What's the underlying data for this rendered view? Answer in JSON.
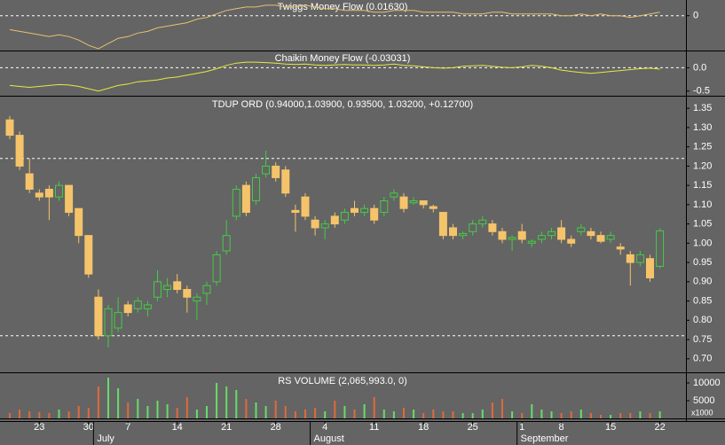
{
  "chart_data": [
    {
      "type": "line",
      "title": "Twiggs Money Flow (0.01630)",
      "color": "#e8c070",
      "ylim": [
        -0.2,
        0.09
      ],
      "yticks": [
        0
      ],
      "reference_lines": [
        0
      ],
      "values": [
        -0.08,
        -0.09,
        -0.1,
        -0.11,
        -0.12,
        -0.11,
        -0.12,
        -0.14,
        -0.17,
        -0.19,
        -0.16,
        -0.13,
        -0.12,
        -0.1,
        -0.09,
        -0.07,
        -0.06,
        -0.05,
        -0.04,
        -0.02,
        -0.01,
        0.01,
        0.03,
        0.04,
        0.05,
        0.05,
        0.06,
        0.06,
        0.05,
        0.05,
        0.06,
        0.05,
        0.04,
        0.04,
        0.03,
        0.03,
        0.03,
        0.02,
        0.02,
        0.03,
        0.03,
        0.03,
        0.02,
        0.02,
        0.02,
        0.02,
        0.01,
        0.01,
        0.01,
        0.02,
        0.02,
        0.01,
        0.01,
        0.01,
        0.01,
        0.01,
        0.0,
        0.0,
        0.01,
        0.0,
        0.01,
        0.0,
        0.0,
        -0.01,
        0.0,
        0.01,
        0.02
      ]
    },
    {
      "type": "line",
      "title": "Chaikin Money Flow (-0.03031)",
      "color": "#e8e840",
      "ylim": [
        -0.6,
        0.35
      ],
      "yticks": [
        {
          "value": 0,
          "label": "0.0"
        },
        {
          "value": -0.5,
          "label": "-0.5"
        }
      ],
      "reference_lines": [
        0
      ],
      "values": [
        -0.38,
        -0.4,
        -0.42,
        -0.4,
        -0.38,
        -0.36,
        -0.37,
        -0.4,
        -0.45,
        -0.5,
        -0.44,
        -0.38,
        -0.35,
        -0.3,
        -0.28,
        -0.26,
        -0.22,
        -0.2,
        -0.16,
        -0.12,
        -0.08,
        -0.02,
        0.05,
        0.1,
        0.12,
        0.12,
        0.11,
        0.1,
        0.08,
        0.07,
        0.08,
        0.06,
        0.05,
        0.06,
        0.07,
        0.06,
        0.06,
        0.05,
        0.06,
        0.08,
        0.05,
        0.04,
        0.02,
        0.0,
        -0.01,
        0.0,
        0.03,
        0.04,
        0.05,
        0.03,
        0.01,
        0.0,
        0.02,
        0.05,
        0.03,
        0.0,
        -0.05,
        -0.08,
        -0.1,
        -0.12,
        -0.1,
        -0.08,
        -0.06,
        -0.04,
        -0.02,
        -0.01,
        -0.03
      ]
    },
    {
      "type": "candlestick",
      "title": "TDUP ORD (0.94000,1.03900, 0.93500, 1.03200, +0.12700)",
      "up_color": "#44cc44",
      "down_color": "#f5c46a",
      "ylim": [
        0.665,
        1.378
      ],
      "yticks": [
        {
          "value": 1.35,
          "label": "1.35"
        },
        {
          "value": 1.3,
          "label": "1.30"
        },
        {
          "value": 1.25,
          "label": "1.25"
        },
        {
          "value": 1.2,
          "label": "1.20"
        },
        {
          "value": 1.15,
          "label": "1.15"
        },
        {
          "value": 1.1,
          "label": "1.10"
        },
        {
          "value": 1.05,
          "label": "1.05"
        },
        {
          "value": 1.0,
          "label": "1.00"
        },
        {
          "value": 0.95,
          "label": "0.95"
        },
        {
          "value": 0.9,
          "label": "0.90"
        },
        {
          "value": 0.85,
          "label": "0.85"
        },
        {
          "value": 0.8,
          "label": "0.80"
        },
        {
          "value": 0.75,
          "label": "0.75"
        },
        {
          "value": 0.7,
          "label": "0.70"
        }
      ],
      "reference_lines": [
        1.22,
        0.76
      ],
      "open": [
        1.32,
        1.28,
        1.18,
        1.13,
        1.14,
        1.12,
        1.15,
        1.09,
        1.02,
        0.86,
        0.76,
        0.78,
        0.84,
        0.83,
        0.83,
        0.86,
        0.88,
        0.9,
        0.88,
        0.85,
        0.87,
        0.9,
        0.98,
        1.07,
        1.15,
        1.11,
        1.18,
        1.2,
        1.19,
        1.085,
        1.12,
        1.06,
        1.04,
        1.07,
        1.06,
        1.09,
        1.08,
        1.09,
        1.08,
        1.12,
        1.12,
        1.105,
        1.11,
        1.095,
        1.08,
        1.04,
        1.02,
        1.03,
        1.05,
        1.05,
        1.03,
        1.01,
        1.03,
        1.0,
        1.01,
        1.02,
        1.04,
        1.01,
        1.03,
        1.03,
        1.02,
        1.01,
        0.99,
        0.97,
        0.95,
        0.96,
        0.94
      ],
      "high": [
        1.33,
        1.29,
        1.22,
        1.14,
        1.15,
        1.16,
        1.15,
        1.09,
        1.02,
        0.88,
        0.84,
        0.86,
        0.85,
        0.86,
        0.85,
        0.93,
        0.91,
        0.92,
        0.89,
        0.87,
        0.9,
        0.98,
        1.06,
        1.15,
        1.16,
        1.18,
        1.24,
        1.21,
        1.2,
        1.1,
        1.13,
        1.07,
        1.06,
        1.08,
        1.09,
        1.11,
        1.1,
        1.1,
        1.12,
        1.14,
        1.13,
        1.12,
        1.11,
        1.1,
        1.08,
        1.05,
        1.03,
        1.06,
        1.07,
        1.06,
        1.04,
        1.02,
        1.05,
        1.01,
        1.03,
        1.04,
        1.06,
        1.02,
        1.05,
        1.04,
        1.03,
        1.03,
        1.0,
        0.98,
        0.98,
        0.97,
        1.039
      ],
      "low": [
        1.27,
        1.19,
        1.13,
        1.11,
        1.06,
        1.11,
        1.07,
        1.0,
        0.91,
        0.75,
        0.73,
        0.77,
        0.81,
        0.82,
        0.81,
        0.85,
        0.86,
        0.87,
        0.82,
        0.8,
        0.84,
        0.89,
        0.97,
        1.06,
        1.07,
        1.1,
        1.17,
        1.16,
        1.12,
        1.03,
        1.06,
        1.02,
        1.01,
        1.04,
        1.05,
        1.07,
        1.07,
        1.05,
        1.07,
        1.11,
        1.08,
        1.1,
        1.09,
        1.08,
        1.01,
        1.01,
        1.01,
        1.02,
        1.04,
        1.02,
        1.0,
        0.98,
        1.0,
        0.99,
        1.0,
        1.01,
        1.0,
        0.99,
        1.02,
        1.01,
        1.0,
        1.0,
        0.97,
        0.89,
        0.94,
        0.9,
        0.935
      ],
      "close": [
        1.28,
        1.2,
        1.14,
        1.12,
        1.12,
        1.15,
        1.08,
        1.02,
        0.92,
        0.76,
        0.83,
        0.82,
        0.82,
        0.85,
        0.84,
        0.9,
        0.89,
        0.88,
        0.86,
        0.86,
        0.89,
        0.97,
        1.02,
        1.14,
        1.08,
        1.17,
        1.2,
        1.17,
        1.13,
        1.08,
        1.07,
        1.04,
        1.05,
        1.05,
        1.08,
        1.08,
        1.09,
        1.06,
        1.11,
        1.13,
        1.09,
        1.11,
        1.1,
        1.09,
        1.02,
        1.02,
        1.025,
        1.05,
        1.06,
        1.03,
        1.01,
        1.015,
        1.01,
        1.005,
        1.02,
        1.03,
        1.01,
        1.0,
        1.04,
        1.02,
        1.005,
        1.02,
        0.985,
        0.95,
        0.97,
        0.91,
        1.032
      ]
    },
    {
      "type": "bar",
      "title": "RS VOLUME (2,065,993.0, 0)",
      "unit_label": "x1000",
      "up_color": "#66dd66",
      "down_color": "#e06a3a",
      "ylim": [
        0,
        12500
      ],
      "yticks": [
        10000,
        5000
      ],
      "values": [
        1500,
        2500,
        2000,
        1800,
        1500,
        2500,
        2000,
        3500,
        3000,
        9000,
        11500,
        8500,
        4500,
        5500,
        3500,
        5000,
        4000,
        3000,
        6000,
        2500,
        3500,
        10000,
        9000,
        8000,
        5500,
        4500,
        3500,
        5000,
        3500,
        2000,
        2500,
        3000,
        2000,
        5000,
        3500,
        2500,
        4000,
        6000,
        2500,
        2000,
        3000,
        2500,
        1500,
        2500,
        2000,
        2000,
        1500,
        1500,
        2500,
        4500,
        5500,
        2000,
        1500,
        4000,
        2500,
        2000,
        1500,
        2000,
        2500,
        1500,
        1000,
        1000,
        1500,
        1500,
        2000,
        1500,
        2000
      ],
      "categories": [
        null,
        null,
        null,
        "23",
        null,
        null,
        null,
        null,
        "30",
        null,
        null,
        null,
        "7",
        null,
        null,
        null,
        null,
        "14",
        null,
        null,
        null,
        null,
        "21",
        null,
        null,
        null,
        null,
        "28",
        null,
        null,
        null,
        null,
        "4",
        null,
        null,
        null,
        null,
        "11",
        null,
        null,
        null,
        null,
        "18",
        null,
        null,
        null,
        null,
        "25",
        null,
        null,
        null,
        null,
        "1",
        null,
        null,
        null,
        "8",
        null,
        null,
        null,
        null,
        "15",
        null,
        null,
        null,
        null,
        "22"
      ],
      "month_labels": [
        null,
        null,
        null,
        null,
        null,
        null,
        null,
        null,
        null,
        "July",
        null,
        null,
        null,
        null,
        null,
        null,
        null,
        null,
        null,
        null,
        null,
        null,
        null,
        null,
        null,
        null,
        null,
        null,
        null,
        null,
        null,
        "August",
        null,
        null,
        null,
        null,
        null,
        null,
        null,
        null,
        null,
        null,
        null,
        null,
        null,
        null,
        null,
        null,
        null,
        null,
        null,
        null,
        "September",
        null,
        null,
        null,
        null,
        null,
        null,
        null,
        null,
        null,
        null,
        null,
        null,
        null,
        null
      ]
    }
  ]
}
